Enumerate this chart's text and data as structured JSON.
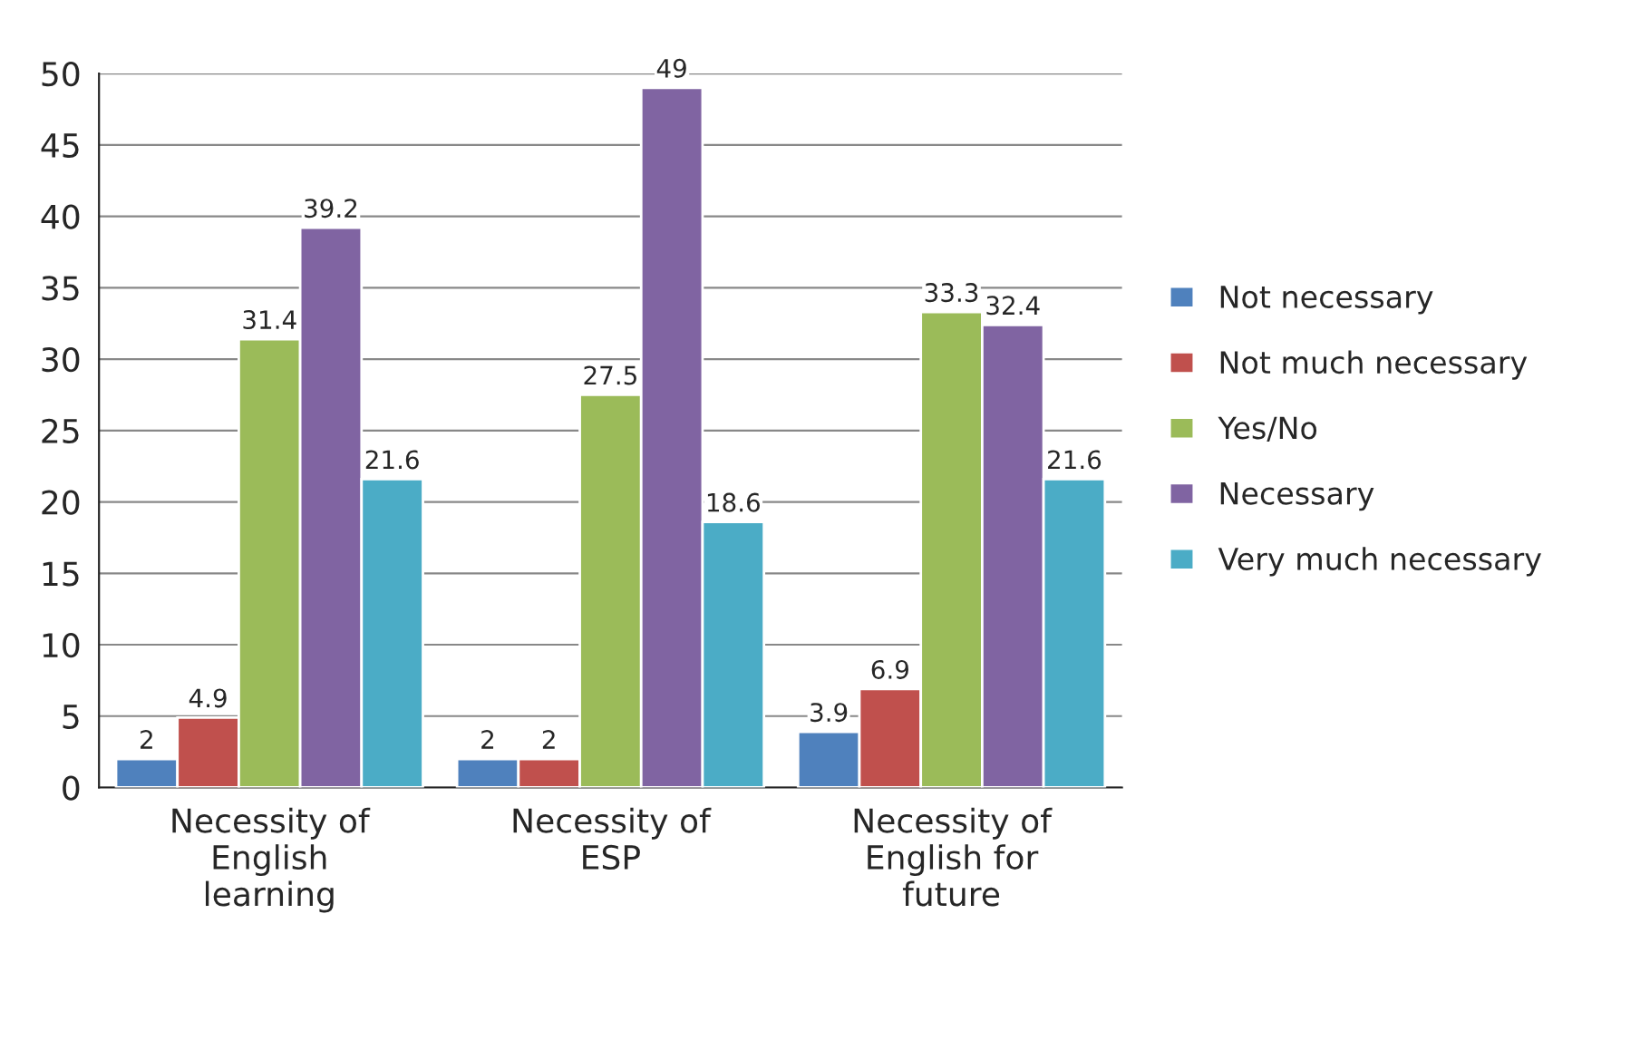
{
  "chart_data": {
    "type": "bar",
    "categories": [
      "Necessity of\nEnglish\nlearning",
      "Necessity of\nESP",
      "Necessity of\nEnglish for\nfuture"
    ],
    "series": [
      {
        "name": "Not necessary",
        "color": "#4f81bd",
        "values": [
          2,
          2,
          3.9
        ]
      },
      {
        "name": "Not much necessary",
        "color": "#c0504d",
        "values": [
          4.9,
          2,
          6.9
        ]
      },
      {
        "name": "Yes/No",
        "color": "#9bbb59",
        "values": [
          31.4,
          27.5,
          33.3
        ]
      },
      {
        "name": "Necessary",
        "color": "#8064a2",
        "values": [
          39.2,
          49,
          32.4
        ]
      },
      {
        "name": "Very much necessary",
        "color": "#4bacc6",
        "values": [
          21.6,
          18.6,
          21.6
        ]
      }
    ],
    "ylim": [
      0,
      50
    ],
    "yticks": [
      0,
      5,
      10,
      15,
      20,
      25,
      30,
      35,
      40,
      45,
      50
    ],
    "grid": "y",
    "legend": "right",
    "data_labels": true
  }
}
